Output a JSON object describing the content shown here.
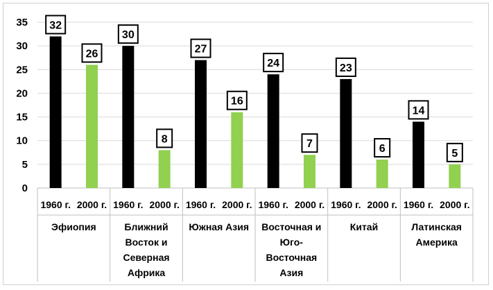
{
  "chart_data": {
    "type": "bar",
    "title": "",
    "xlabel": "",
    "ylabel": "",
    "ylim": [
      0,
      35
    ],
    "yticks": [
      0,
      5,
      10,
      15,
      20,
      25,
      30,
      35
    ],
    "grid": true,
    "legend": "none",
    "group_labels": [
      "Эфиопия",
      "Ближний Восток и Северная Африка",
      "Южная Азия",
      "Восточная и Юго-Восточная Азия",
      "Китай",
      "Латинская Америка"
    ],
    "year_labels": [
      "1960 г.",
      "2000 г."
    ],
    "colors": [
      "#000000",
      "#92d050"
    ],
    "series": [
      {
        "values": [
          32,
          30,
          27,
          24,
          23,
          14
        ]
      },
      {
        "values": [
          26,
          8,
          16,
          7,
          6,
          5
        ]
      }
    ]
  }
}
